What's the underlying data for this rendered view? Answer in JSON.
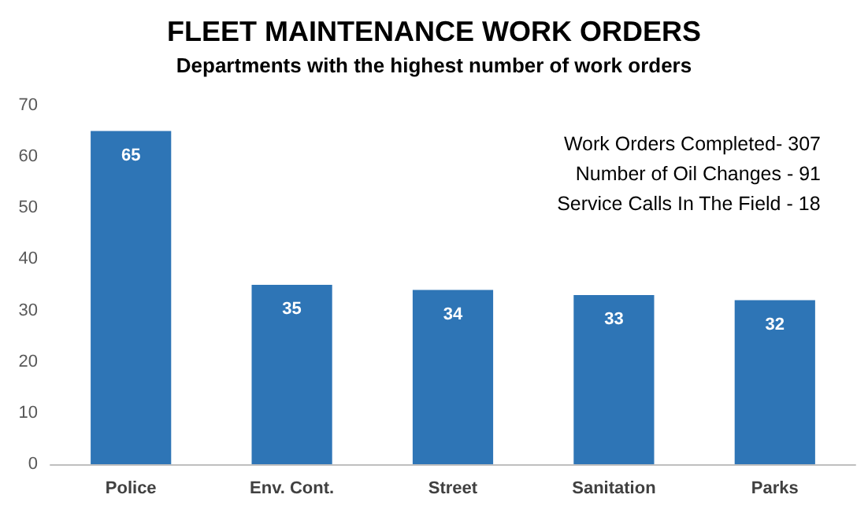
{
  "chart_data": {
    "type": "bar",
    "title": "FLEET MAINTENANCE WORK ORDERS",
    "subtitle": "Departments with the highest number of work orders",
    "categories": [
      "Police",
      "Env. Cont.",
      "Street",
      "Sanitation",
      "Parks"
    ],
    "values": [
      65,
      35,
      34,
      33,
      32
    ],
    "color": "#2e75b6",
    "ylim": [
      0,
      70
    ],
    "yticks": [
      0,
      10,
      20,
      30,
      40,
      50,
      60,
      70
    ],
    "grid": false,
    "data_labels": true,
    "annotations": [
      "Work Orders Completed- 307",
      "Number of Oil Changes - 91",
      "Service Calls In The Field - 18"
    ]
  }
}
